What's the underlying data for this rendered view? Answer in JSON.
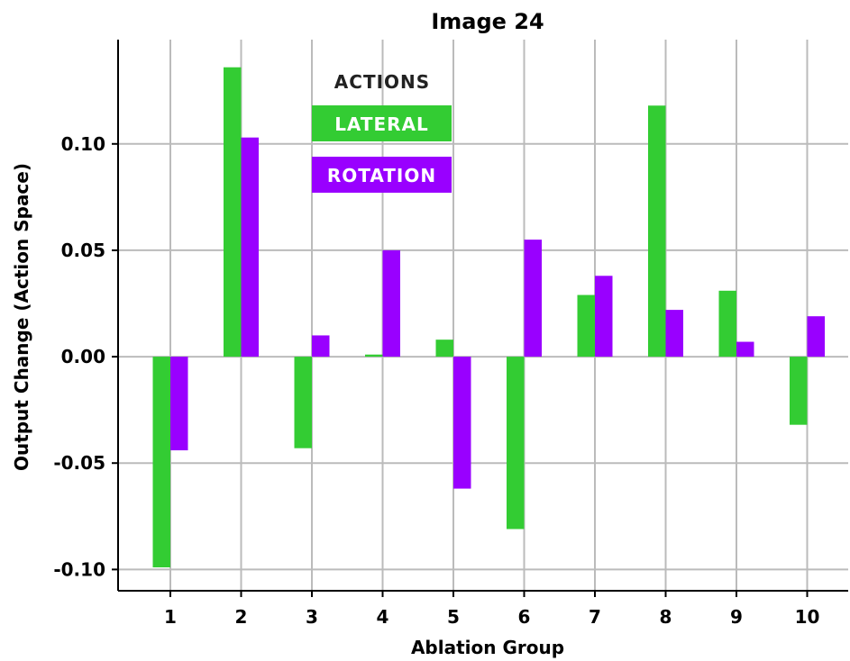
{
  "chart_data": {
    "type": "bar",
    "title": "Image 24",
    "xlabel": "Ablation Group",
    "ylabel": "Output Change (Action Space)",
    "categories": [
      "1",
      "2",
      "3",
      "4",
      "5",
      "6",
      "7",
      "8",
      "9",
      "10"
    ],
    "series": [
      {
        "name": "LATERAL",
        "color": "#33cc33",
        "values": [
          -0.099,
          0.136,
          -0.043,
          0.001,
          0.008,
          -0.081,
          0.029,
          0.118,
          0.031,
          -0.032
        ]
      },
      {
        "name": "ROTATION",
        "color": "#9900ff",
        "values": [
          -0.044,
          0.103,
          0.01,
          0.05,
          -0.062,
          0.055,
          0.038,
          0.022,
          0.007,
          0.019
        ]
      }
    ],
    "ylim": [
      -0.11,
      0.149
    ],
    "yticks": [
      "0.10",
      "0.05",
      "0.00",
      "-0.05",
      "-0.10"
    ],
    "ytick_values": [
      0.1,
      0.05,
      0.0,
      -0.05,
      -0.1
    ],
    "grid": true,
    "legend": {
      "title": "ACTIONS",
      "placement": "top-left"
    },
    "grid_color": "#bbbbbb",
    "axis_color": "#000000"
  }
}
